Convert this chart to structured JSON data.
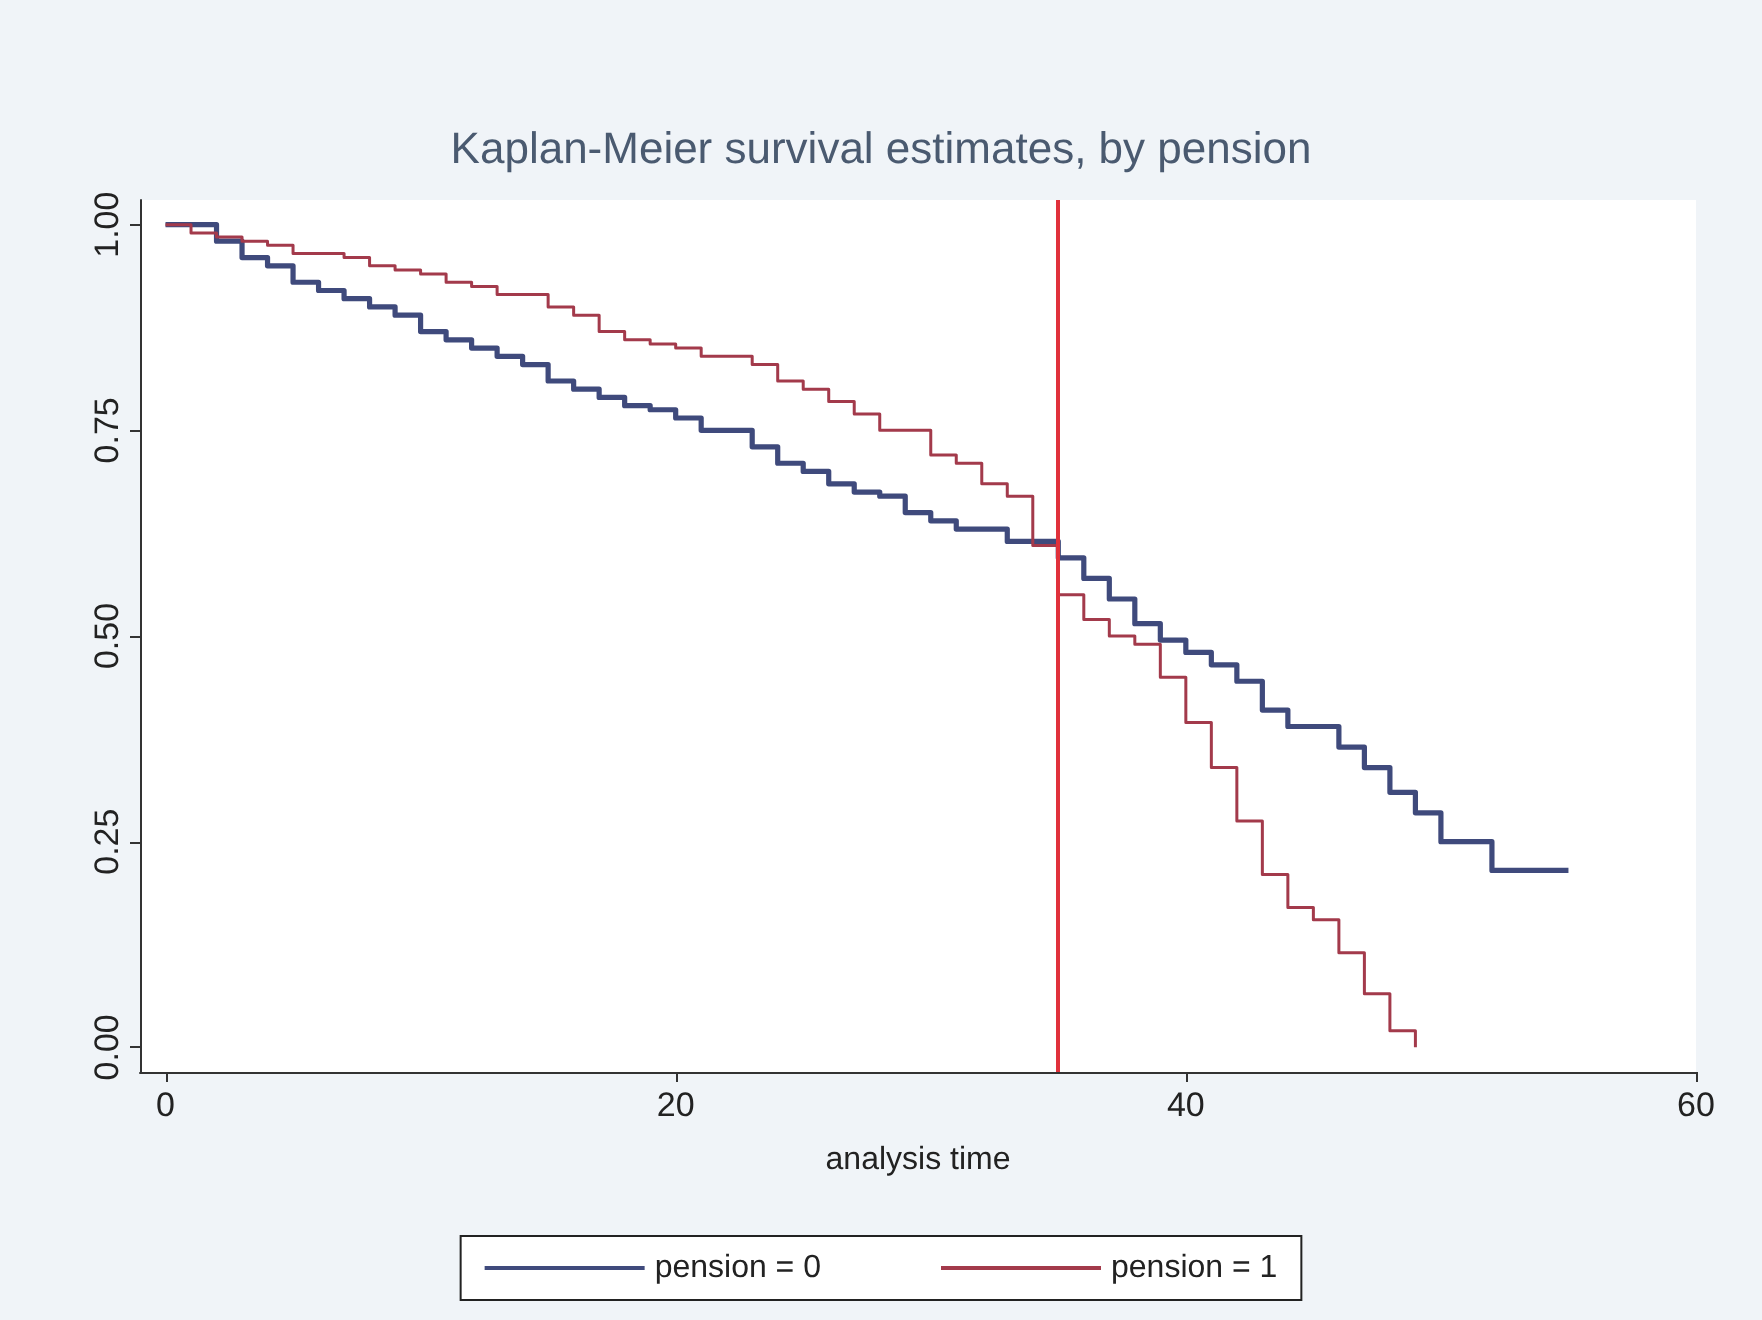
{
  "chart_data": {
    "type": "step",
    "title": "Kaplan-Meier survival estimates, by pension",
    "xlabel": "analysis time",
    "xlim": [
      -1,
      60
    ],
    "xticks": [
      0,
      20,
      40,
      60
    ],
    "ylim": [
      -0.03,
      1.03
    ],
    "yticks": [
      {
        "value": 0,
        "label": "0.00"
      },
      {
        "value": 0.25,
        "label": "0.25"
      },
      {
        "value": 0.5,
        "label": "0.50"
      },
      {
        "value": 0.75,
        "label": "0.75"
      },
      {
        "value": 1,
        "label": "1.00"
      }
    ],
    "grid": false,
    "legend": "bottom",
    "marker": "none",
    "line_style": "solid",
    "ref_lines": [
      {
        "axis": "x",
        "value": 35,
        "color": "#e0313b"
      }
    ],
    "series": [
      {
        "name": "pension = 0",
        "color": "#3f4a7c",
        "x": [
          0,
          2,
          3,
          4,
          5,
          6,
          7,
          8,
          9,
          10,
          11,
          12,
          13,
          14,
          15,
          16,
          17,
          18,
          19,
          20,
          21,
          23,
          24,
          25,
          26,
          27,
          28,
          29,
          30,
          31,
          33,
          35,
          36,
          37,
          38,
          39,
          40,
          41,
          42,
          43,
          44,
          46,
          47,
          48,
          49,
          50,
          52,
          55
        ],
        "values": [
          1,
          0.98,
          0.96,
          0.95,
          0.93,
          0.92,
          0.91,
          0.9,
          0.89,
          0.87,
          0.86,
          0.85,
          0.84,
          0.83,
          0.81,
          0.8,
          0.79,
          0.78,
          0.775,
          0.765,
          0.75,
          0.73,
          0.71,
          0.7,
          0.685,
          0.675,
          0.67,
          0.65,
          0.64,
          0.63,
          0.615,
          0.595,
          0.57,
          0.545,
          0.515,
          0.495,
          0.48,
          0.465,
          0.445,
          0.41,
          0.39,
          0.365,
          0.34,
          0.31,
          0.285,
          0.25,
          0.215,
          0.215
        ]
      },
      {
        "name": "pension = 1",
        "color": "#a33a4b",
        "x": [
          0,
          1,
          2,
          3,
          4,
          5,
          7,
          8,
          9,
          10,
          11,
          12,
          13,
          15,
          16,
          17,
          18,
          19,
          20,
          21,
          23,
          24,
          25,
          26,
          27,
          28,
          30,
          31,
          32,
          33,
          34,
          35,
          36,
          37,
          38,
          39,
          40,
          41,
          42,
          43,
          44,
          45,
          46,
          47,
          48,
          49
        ],
        "values": [
          1,
          0.99,
          0.985,
          0.98,
          0.975,
          0.965,
          0.96,
          0.95,
          0.945,
          0.94,
          0.93,
          0.925,
          0.915,
          0.9,
          0.89,
          0.87,
          0.86,
          0.855,
          0.85,
          0.84,
          0.83,
          0.81,
          0.8,
          0.785,
          0.77,
          0.75,
          0.72,
          0.71,
          0.685,
          0.67,
          0.61,
          0.55,
          0.52,
          0.5,
          0.49,
          0.45,
          0.395,
          0.34,
          0.275,
          0.21,
          0.17,
          0.155,
          0.115,
          0.065,
          0.02,
          0
        ]
      }
    ]
  }
}
